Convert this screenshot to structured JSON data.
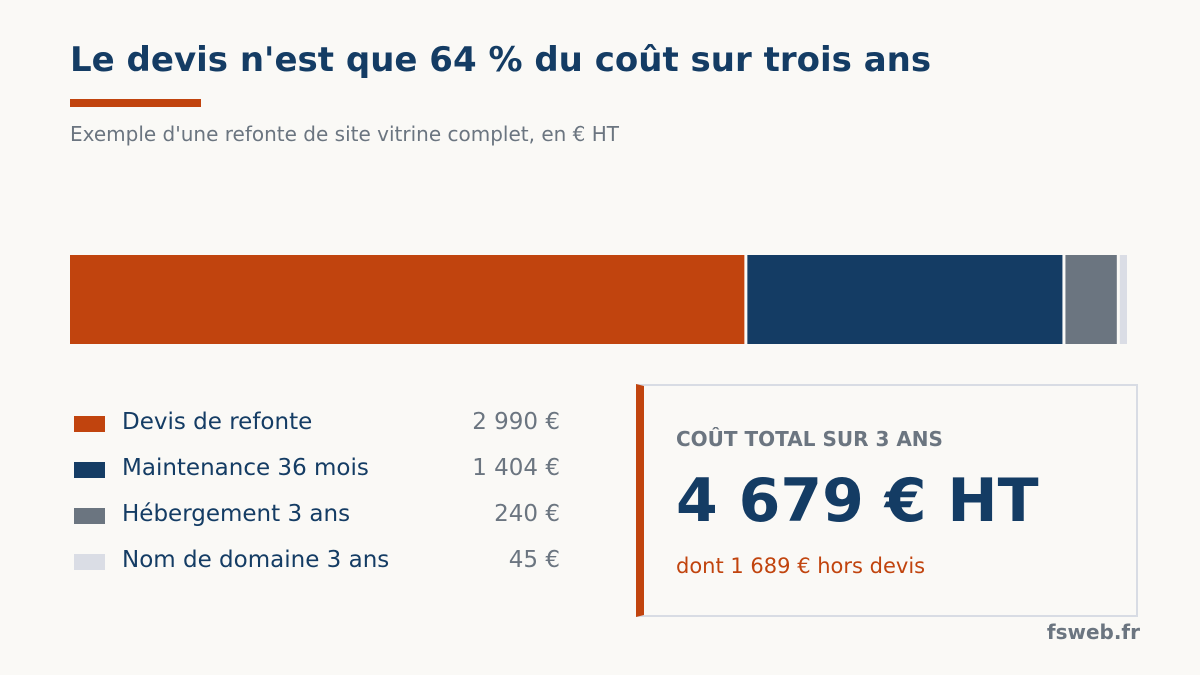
{
  "title": "Le devis n'est que 64 % du coût sur trois ans",
  "subtitle": "Exemple d'une refonte de site vitrine complet, en € HT",
  "chart_data": {
    "type": "bar",
    "orientation": "horizontal-stacked",
    "categories": [
      "Devis de refonte",
      "Maintenance 36 mois",
      "Hébergement 3 ans",
      "Nom de domaine 3 ans"
    ],
    "values": [
      2990,
      1404,
      240,
      45
    ],
    "value_labels": [
      "2 990 €",
      "1 404 €",
      "240 €",
      "45 €"
    ],
    "colors": [
      "#c1440e",
      "#143c64",
      "#6b7580",
      "#dadde5"
    ],
    "total": 4679,
    "legend_placement": "bottom-left",
    "grid": false
  },
  "summary": {
    "label": "COÛT TOTAL SUR 3 ANS",
    "total": "4 679 € HT",
    "note": "dont 1 689 € hors devis"
  },
  "brand": "fsweb.fr",
  "accent_color": "#c1440e"
}
